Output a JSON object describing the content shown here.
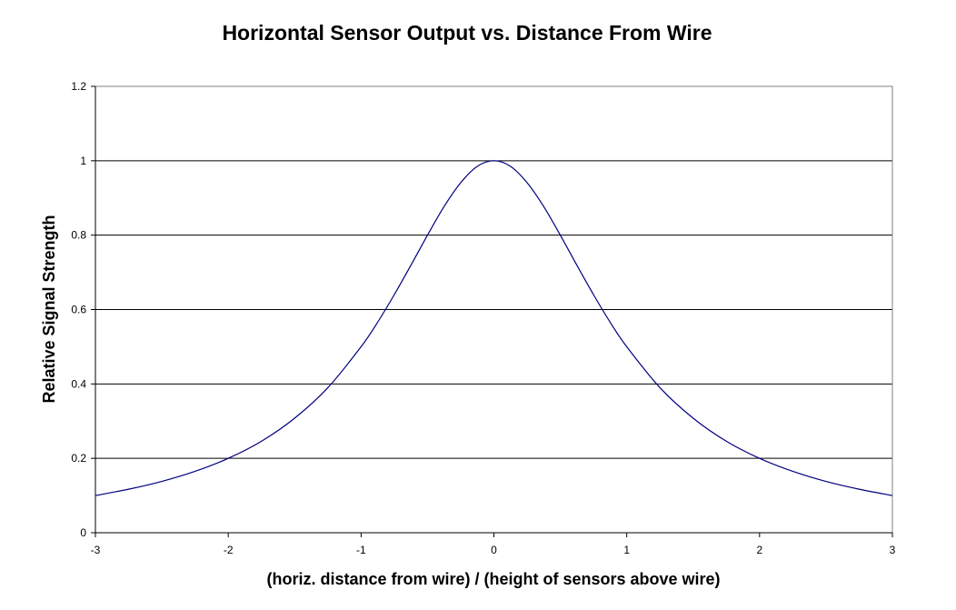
{
  "chart_data": {
    "type": "line",
    "title": "Horizontal Sensor Output vs. Distance From Wire",
    "xlabel": "(horiz. distance from wire) / (height of sensors above wire)",
    "ylabel": "Relative Signal Strength",
    "xlim": [
      -3,
      3
    ],
    "ylim": [
      0,
      1.2
    ],
    "x_ticks": [
      -3,
      -2,
      -1,
      0,
      1,
      2,
      3
    ],
    "y_ticks": [
      0,
      0.2,
      0.4,
      0.6,
      0.8,
      1,
      1.2
    ],
    "x_tick_labels": [
      "-3",
      "-2",
      "-1",
      "0",
      "1",
      "2",
      "3"
    ],
    "y_tick_labels": [
      "0",
      "0.2",
      "0.4",
      "0.6",
      "0.8",
      "1",
      "1.2"
    ],
    "grid": "horizontal",
    "legend": "none",
    "series": [
      {
        "color": "#000080",
        "x": [
          -3,
          -2.75,
          -2.5,
          -2.25,
          -2,
          -1.75,
          -1.5,
          -1.25,
          -1,
          -0.875,
          -0.75,
          -0.625,
          -0.5,
          -0.375,
          -0.25,
          -0.125,
          0,
          0.125,
          0.25,
          0.375,
          0.5,
          0.625,
          0.75,
          0.875,
          1,
          1.25,
          1.5,
          1.75,
          2,
          2.25,
          2.5,
          2.75,
          3
        ],
        "y": [
          0.1,
          0.117,
          0.138,
          0.165,
          0.2,
          0.246,
          0.308,
          0.39,
          0.5,
          0.566,
          0.64,
          0.719,
          0.8,
          0.877,
          0.941,
          0.985,
          1,
          0.985,
          0.941,
          0.877,
          0.8,
          0.719,
          0.64,
          0.566,
          0.5,
          0.39,
          0.308,
          0.246,
          0.2,
          0.165,
          0.138,
          0.117,
          0.1
        ]
      }
    ]
  },
  "colors": {
    "background": "#ffffff",
    "plot_border": "#808080",
    "gridline": "#000000",
    "line": "#000080"
  }
}
